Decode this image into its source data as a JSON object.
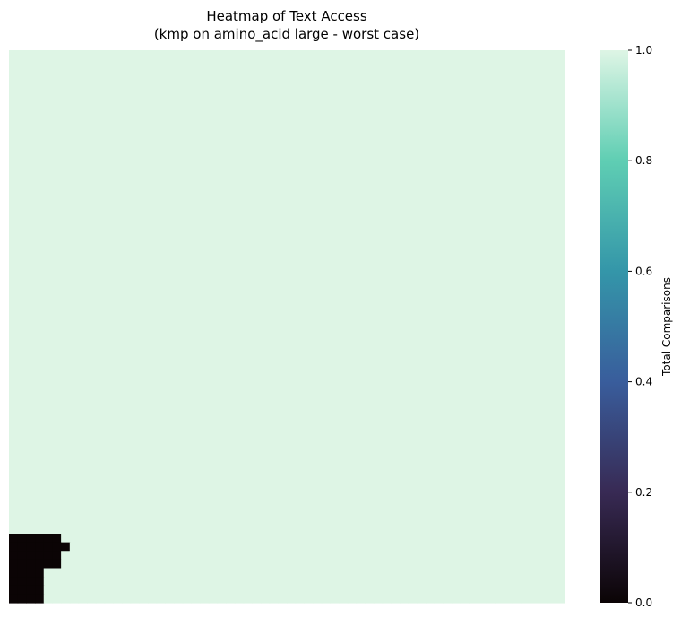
{
  "chart_data": {
    "type": "heatmap",
    "title_lines": [
      "Heatmap of Text Access",
      "(kmp on amino_acid large - worst case)"
    ],
    "xlabel": "",
    "ylabel": "",
    "grid": false,
    "colorbar": {
      "label": "Total Comparisons",
      "range": [
        0.0,
        1.0
      ],
      "ticks": [
        0.0,
        0.2,
        0.4,
        0.6,
        0.8,
        1.0
      ],
      "tick_labels": [
        "0.0",
        "0.2",
        "0.4",
        "0.6",
        "0.8",
        "1.0"
      ],
      "colormap": "mako"
    },
    "grid_size": [
      64,
      64
    ],
    "default_value": 1.0,
    "regions": [
      {
        "rows": [
          56,
          59
        ],
        "cols": [
          0,
          5
        ],
        "value": 0.0
      },
      {
        "rows": [
          57,
          57
        ],
        "cols": [
          6,
          6
        ],
        "value": 0.0
      },
      {
        "rows": [
          60,
          63
        ],
        "cols": [
          0,
          3
        ],
        "value": 0.0
      }
    ]
  },
  "colors": {
    "cmap_stops": [
      "#0b0405",
      "#382a54",
      "#395d9c",
      "#3496a9",
      "#5fceb3",
      "#def5e5"
    ]
  }
}
